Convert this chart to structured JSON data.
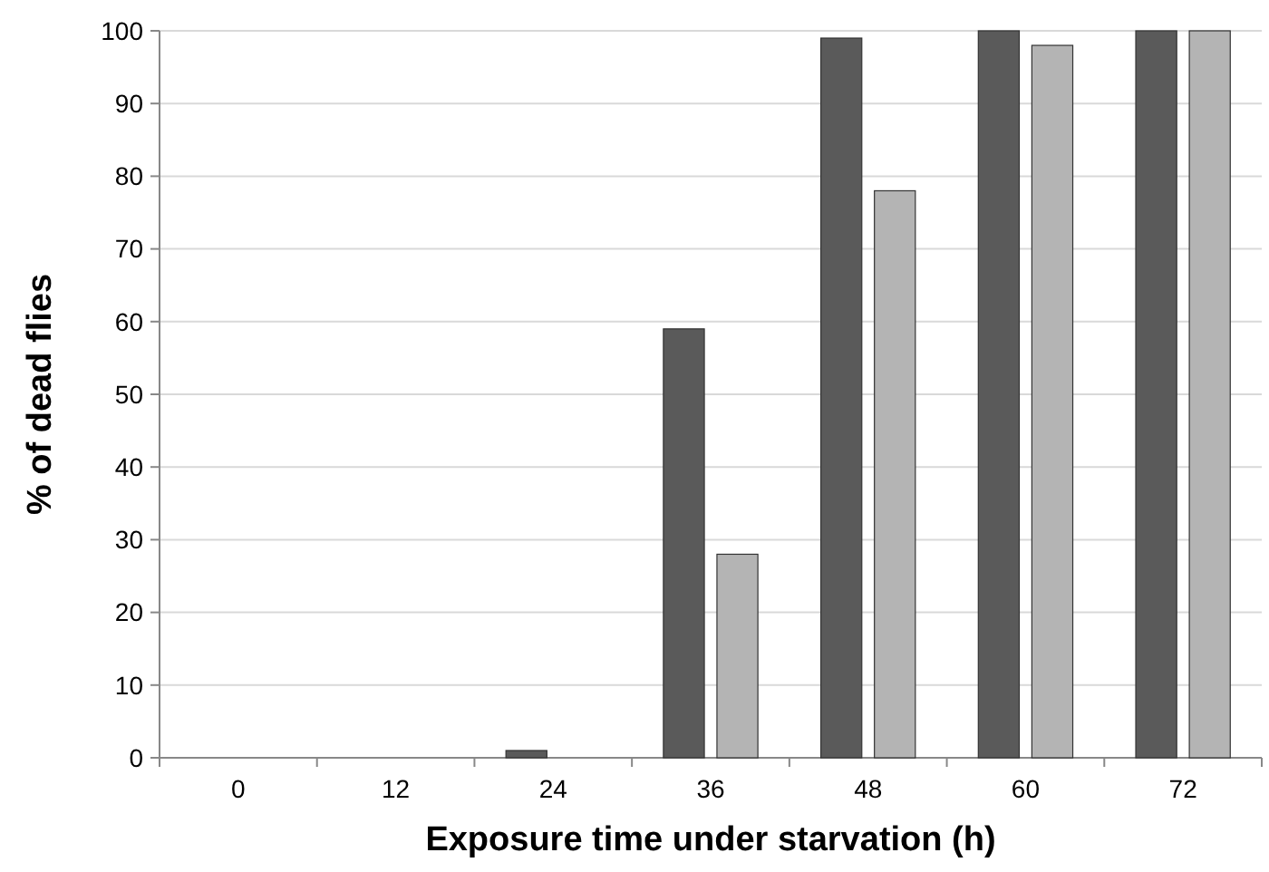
{
  "chart_data": {
    "type": "bar",
    "xlabel": "Exposure time under starvation (h)",
    "ylabel": "% of dead flies",
    "categories": [
      "0",
      "12",
      "24",
      "36",
      "48",
      "60",
      "72"
    ],
    "series": [
      {
        "color": "#5a5a5a",
        "values": [
          0,
          0,
          1,
          59,
          99,
          100,
          100
        ]
      },
      {
        "color": "#b4b4b4",
        "values": [
          0,
          0,
          0,
          28,
          78,
          98,
          100
        ]
      }
    ],
    "ylim": [
      0,
      100
    ],
    "yticks": [
      0,
      10,
      20,
      30,
      40,
      50,
      60,
      70,
      80,
      90,
      100
    ],
    "grid": "y"
  }
}
